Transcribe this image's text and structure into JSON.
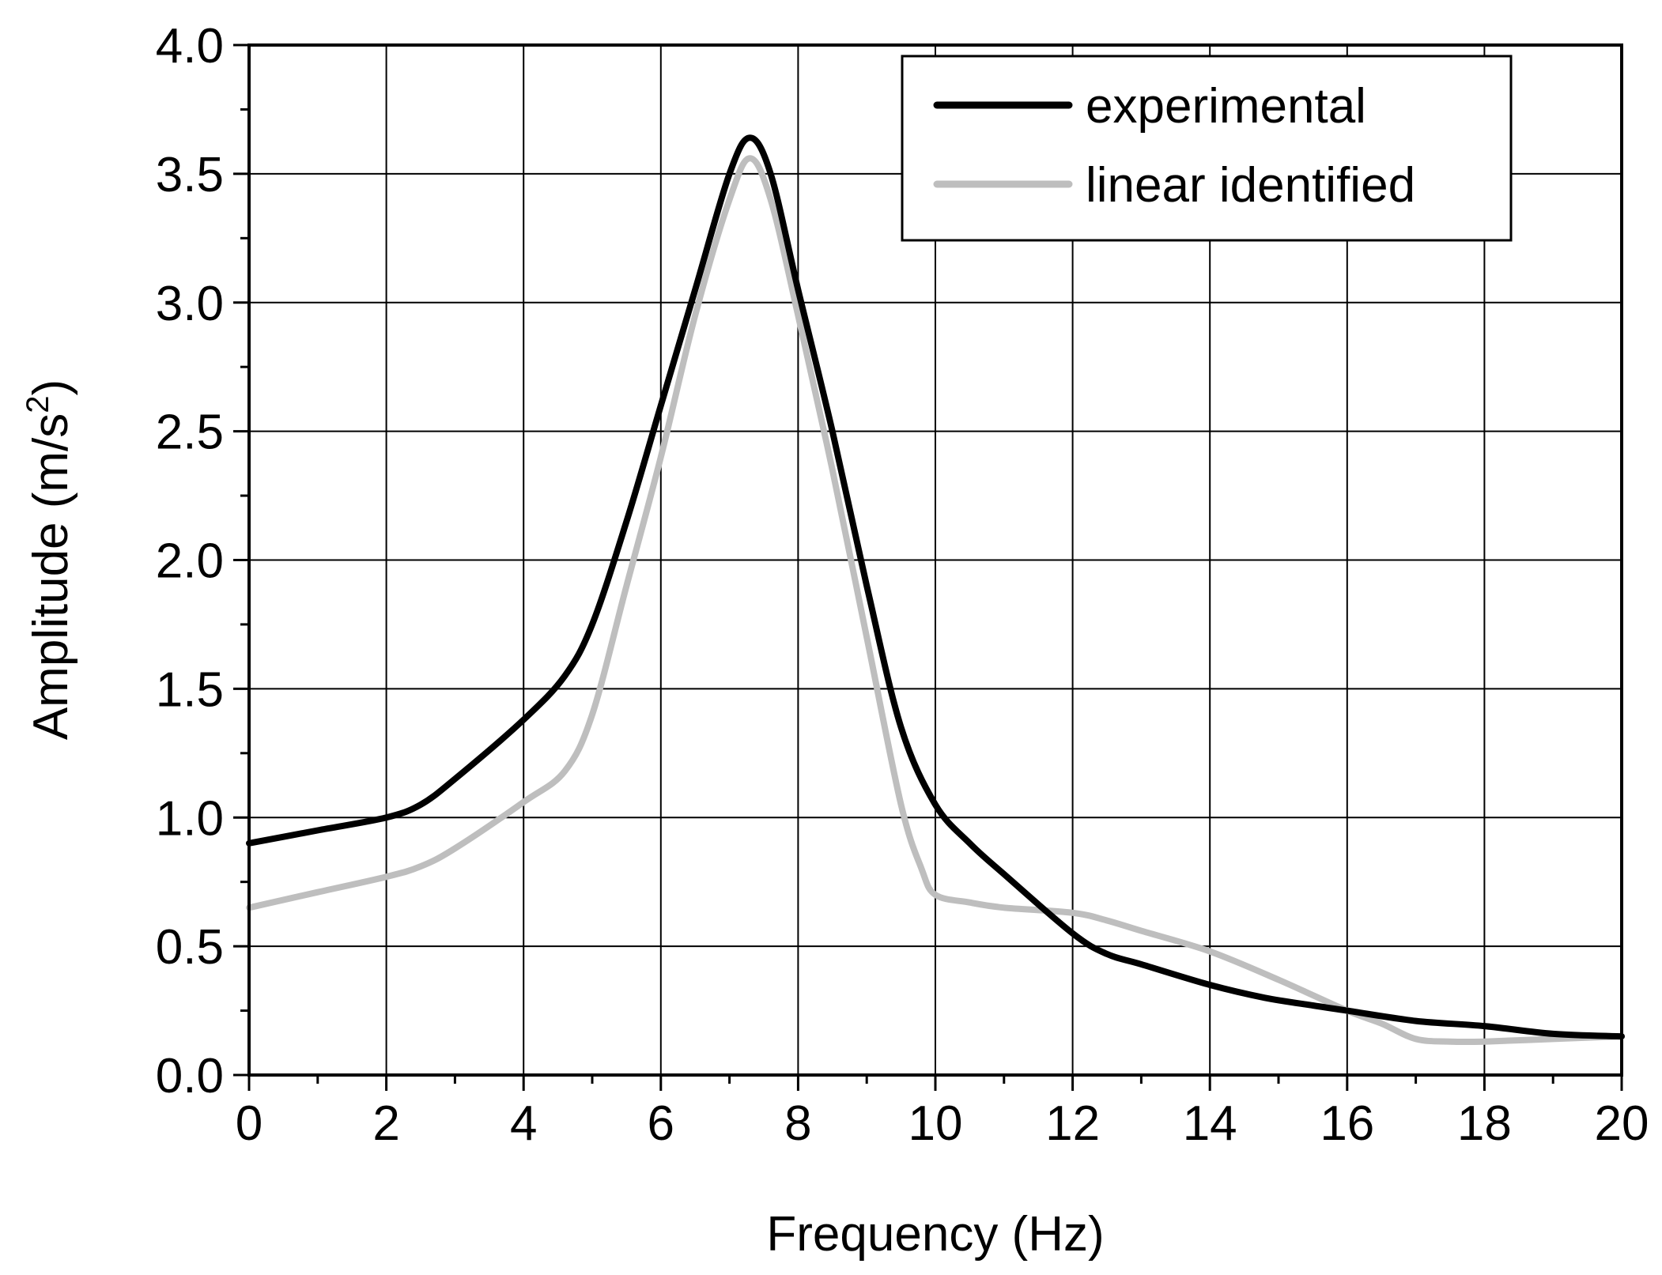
{
  "chart_data": {
    "type": "line",
    "xlabel": "Frequency (Hz)",
    "ylabel": {
      "prefix": "Amplitude (m/s",
      "superscript": "2",
      "suffix": ")"
    },
    "xlim": [
      0,
      20
    ],
    "ylim": [
      0,
      4
    ],
    "x_ticks": [
      0,
      2,
      4,
      6,
      8,
      10,
      12,
      14,
      16,
      18,
      20
    ],
    "x_tick_labels": [
      "0",
      "2",
      "4",
      "6",
      "8",
      "10",
      "12",
      "14",
      "16",
      "18",
      "20"
    ],
    "y_ticks": [
      0,
      0.5,
      1,
      1.5,
      2,
      2.5,
      3,
      3.5,
      4
    ],
    "y_tick_labels": [
      "0.0",
      "0.5",
      "1.0",
      "1.5",
      "2.0",
      "2.5",
      "3.0",
      "3.5",
      "4.0"
    ],
    "x_minor_step": 1,
    "y_minor_step": 0.25,
    "grid": true,
    "legend_position": "top-right",
    "series": [
      {
        "name": "experimental",
        "color": "#000000",
        "x": [
          0,
          1,
          2,
          2.5,
          3,
          4,
          4.6,
          5,
          5.5,
          6,
          6.5,
          7,
          7.3,
          7.6,
          8,
          8.5,
          9,
          9.5,
          10,
          10.5,
          11,
          12,
          12.5,
          13,
          14,
          14.8,
          15.5,
          16,
          17,
          18,
          19,
          20
        ],
        "y": [
          0.9,
          0.95,
          1.0,
          1.05,
          1.15,
          1.38,
          1.55,
          1.75,
          2.15,
          2.6,
          3.05,
          3.5,
          3.64,
          3.5,
          3.05,
          2.5,
          1.9,
          1.35,
          1.05,
          0.9,
          0.78,
          0.55,
          0.47,
          0.43,
          0.35,
          0.3,
          0.27,
          0.25,
          0.21,
          0.19,
          0.16,
          0.15
        ]
      },
      {
        "name": "linear identified",
        "color": "#bebebe",
        "x": [
          0,
          1,
          2,
          2.5,
          3,
          4,
          4.6,
          5,
          5.5,
          6,
          6.5,
          7,
          7.3,
          7.6,
          8,
          8.5,
          9,
          9.5,
          9.8,
          10,
          10.5,
          11,
          12,
          12.5,
          13,
          14,
          15,
          16,
          16.5,
          17,
          17.5,
          18,
          19,
          20
        ],
        "y": [
          0.65,
          0.71,
          0.77,
          0.81,
          0.88,
          1.06,
          1.18,
          1.4,
          1.9,
          2.4,
          2.95,
          3.4,
          3.56,
          3.4,
          2.95,
          2.35,
          1.7,
          1.05,
          0.8,
          0.7,
          0.67,
          0.65,
          0.63,
          0.6,
          0.56,
          0.48,
          0.37,
          0.25,
          0.2,
          0.14,
          0.13,
          0.13,
          0.14,
          0.15
        ]
      }
    ]
  }
}
